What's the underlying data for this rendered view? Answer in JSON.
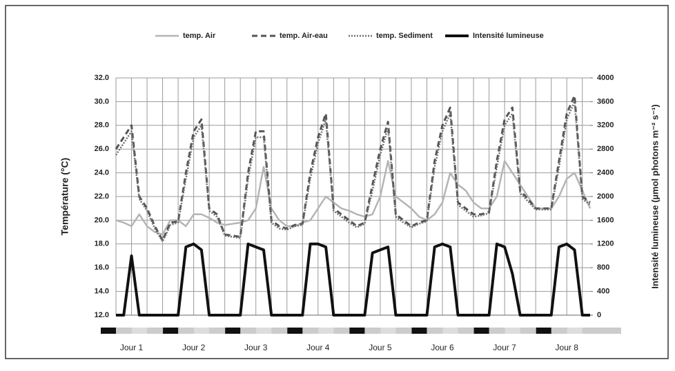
{
  "chart_data": {
    "type": "line",
    "legend_position": "top",
    "grid": true,
    "y_label": "Température (°C)",
    "y2_label": "Intensité lumineuse (µmol photons m⁻² s⁻¹)",
    "categories": [
      null,
      null,
      "Jour 1",
      null,
      null,
      null,
      null,
      null,
      null,
      null,
      "Jour 2",
      null,
      null,
      null,
      null,
      null,
      null,
      null,
      "Jour 3",
      null,
      null,
      null,
      null,
      null,
      null,
      null,
      "Jour 4",
      null,
      null,
      null,
      null,
      null,
      null,
      null,
      "Jour 5",
      null,
      null,
      null,
      null,
      null,
      null,
      null,
      "Jour 6",
      null,
      null,
      null,
      null,
      null,
      null,
      null,
      "Jour 7",
      null,
      null,
      null,
      null,
      null,
      null,
      null,
      "Jour 8",
      null,
      null,
      null
    ],
    "ylim": [
      12,
      32
    ],
    "yticks": [
      {
        "value": 12,
        "label": "12.0"
      },
      {
        "value": 14,
        "label": "14.0"
      },
      {
        "value": 16,
        "label": "16.0"
      },
      {
        "value": 18,
        "label": "18.0"
      },
      {
        "value": 20,
        "label": "20.0"
      },
      {
        "value": 22,
        "label": "22.0"
      },
      {
        "value": 24,
        "label": "24.0"
      },
      {
        "value": 26,
        "label": "26.0"
      },
      {
        "value": 28,
        "label": "28.0"
      },
      {
        "value": 30,
        "label": "30.0"
      },
      {
        "value": 32,
        "label": "32.0"
      }
    ],
    "y2lim": [
      0,
      4000
    ],
    "y2ticks": [
      0,
      400,
      800,
      1200,
      1600,
      2000,
      2400,
      2800,
      3200,
      3600,
      4000
    ],
    "series": [
      {
        "name": "temp. Air",
        "color": "#b4b4b4",
        "style": "solid",
        "values": [
          20.0,
          19.8,
          19.5,
          20.5,
          19.5,
          19.0,
          18.8,
          20.0,
          20.0,
          19.5,
          20.5,
          20.5,
          20.2,
          19.8,
          19.6,
          19.7,
          19.8,
          20.0,
          21.0,
          24.5,
          21.0,
          20.0,
          19.5,
          19.5,
          19.8,
          20.0,
          21.0,
          22.0,
          21.5,
          21.0,
          20.8,
          20.5,
          20.3,
          20.5,
          22.0,
          25.0,
          22.0,
          21.5,
          21.0,
          20.3,
          20.0,
          20.5,
          21.5,
          24.0,
          23.0,
          22.5,
          21.5,
          21.0,
          21.0,
          22.0,
          25.0,
          24.0,
          23.0,
          22.0,
          21.0,
          21.0,
          21.0,
          22.0,
          23.5,
          24.0,
          22.5,
          21.0
        ]
      },
      {
        "name": "temp. Air-eau",
        "color": "#555555",
        "style": "dashed",
        "values": [
          26.0,
          27.0,
          28.0,
          22.0,
          21.0,
          19.5,
          18.3,
          19.8,
          19.9,
          24.0,
          27.5,
          28.5,
          21.0,
          20.5,
          18.8,
          18.7,
          18.6,
          24.0,
          27.5,
          27.5,
          20.0,
          19.5,
          19.3,
          19.6,
          19.7,
          24.0,
          27.0,
          29.0,
          21.0,
          20.5,
          20.0,
          19.5,
          19.8,
          23.0,
          26.0,
          28.3,
          20.5,
          20.0,
          19.5,
          19.8,
          20.0,
          25.0,
          28.0,
          29.5,
          21.5,
          21.0,
          20.5,
          20.5,
          20.7,
          25.0,
          28.5,
          29.5,
          22.5,
          21.8,
          21.0,
          21.0,
          21.0,
          25.0,
          29.0,
          30.5,
          22.0,
          21.5
        ]
      },
      {
        "name": "temp. Sediment",
        "color": "#6e6e6e",
        "style": "dotted",
        "values": [
          25.5,
          26.5,
          27.5,
          21.8,
          20.8,
          19.3,
          18.2,
          19.6,
          19.8,
          23.5,
          27.0,
          28.0,
          20.8,
          20.3,
          18.7,
          18.6,
          18.5,
          23.5,
          27.0,
          27.0,
          19.8,
          19.3,
          19.2,
          19.5,
          19.6,
          23.5,
          26.5,
          28.5,
          20.8,
          20.3,
          19.8,
          19.4,
          19.7,
          22.5,
          25.5,
          27.8,
          20.3,
          19.8,
          19.4,
          19.7,
          19.9,
          24.5,
          27.5,
          29.0,
          21.3,
          20.8,
          20.3,
          20.4,
          20.6,
          24.5,
          28.0,
          29.0,
          22.3,
          21.6,
          20.9,
          20.9,
          20.9,
          24.5,
          28.5,
          30.0,
          21.8,
          21.3
        ]
      },
      {
        "name": "Intensité lumineuse",
        "color": "#111111",
        "style": "solid",
        "axis": "y2",
        "values": [
          0,
          0,
          1000,
          0,
          0,
          0,
          0,
          0,
          0,
          1150,
          1200,
          1100,
          0,
          0,
          0,
          0,
          0,
          1200,
          1150,
          1100,
          0,
          0,
          0,
          0,
          0,
          1200,
          1200,
          1150,
          0,
          0,
          0,
          0,
          0,
          1050,
          1100,
          1150,
          0,
          0,
          0,
          0,
          0,
          1150,
          1200,
          1150,
          0,
          0,
          0,
          0,
          0,
          1200,
          1150,
          700,
          0,
          0,
          0,
          0,
          0,
          1150,
          1200,
          1100,
          0,
          0
        ]
      }
    ]
  }
}
